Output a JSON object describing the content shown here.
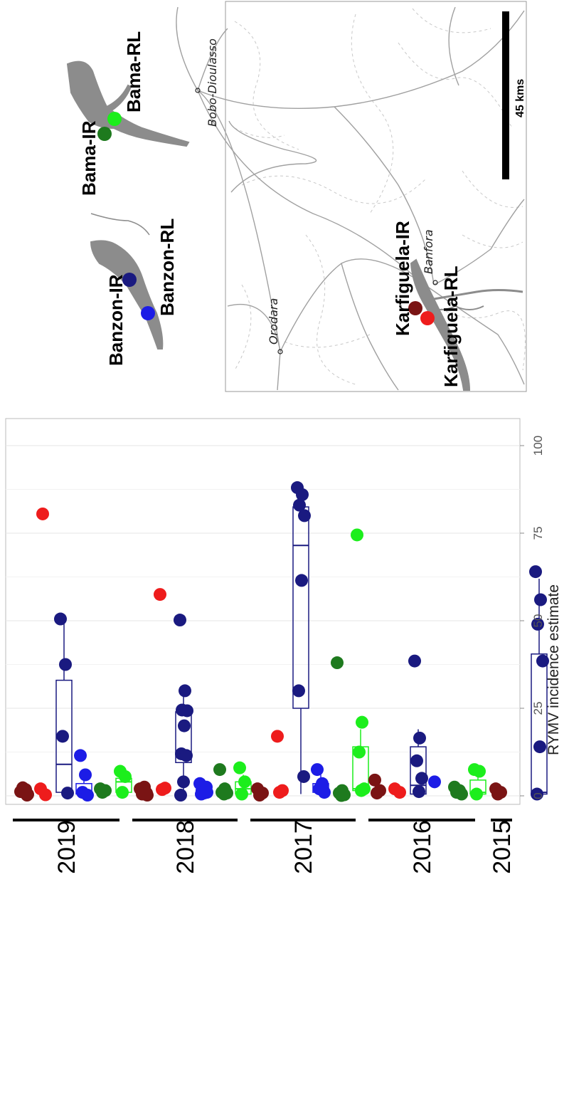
{
  "colors": {
    "Karfiguela-IR": "#7a1414",
    "Karfiguela-RL": "#ee1c1c",
    "Banzon-IR": "#1a1a80",
    "Banzon-RL": "#1c1ce6",
    "Bama-IR": "#1e7a1e",
    "Bama-RL": "#1cee1c"
  },
  "chart_data": {
    "type": "scatter",
    "xlabel": "RYMV incidence estimate",
    "xlim": [
      0,
      105
    ],
    "xticks": [
      0,
      25,
      50,
      75,
      100
    ],
    "groups": [
      "2019",
      "2018",
      "2017",
      "2016",
      "2015"
    ],
    "sites": [
      "Karfiguela-IR",
      "Karfiguela-RL",
      "Banzon-IR",
      "Banzon-RL",
      "Bama-IR",
      "Bama-RL"
    ],
    "series": [
      {
        "year": "2019",
        "site": "Karfiguela-IR",
        "values": [
          1.2,
          1.8,
          2.3,
          0.4,
          0.9,
          1.5,
          0.2
        ]
      },
      {
        "year": "2019",
        "site": "Karfiguela-RL",
        "values": [
          2.0,
          0.3,
          80.5
        ]
      },
      {
        "year": "2019",
        "site": "Banzon-IR",
        "values": [
          50.5,
          37.5,
          17.0,
          0.8
        ]
      },
      {
        "year": "2019",
        "site": "Banzon-RL",
        "values": [
          11.5,
          6.0,
          1.0,
          0.2
        ]
      },
      {
        "year": "2019",
        "site": "Bama-IR",
        "values": [
          2.0,
          1.5,
          1.0
        ]
      },
      {
        "year": "2019",
        "site": "Bama-RL",
        "values": [
          7.0,
          5.5,
          1.0
        ]
      },
      {
        "year": "2018",
        "site": "Karfiguela-IR",
        "values": [
          2.0,
          1.0,
          0.5,
          0.2,
          2.5,
          1.5,
          0.8
        ]
      },
      {
        "year": "2018",
        "site": "Karfiguela-RL",
        "values": [
          57.5,
          2.2,
          1.8
        ]
      },
      {
        "year": "2018",
        "site": "Banzon-IR",
        "values": [
          50.2,
          30.0,
          24.5,
          24.3,
          20.0,
          12.0,
          11.5,
          4.0,
          0.2
        ]
      },
      {
        "year": "2018",
        "site": "Banzon-RL",
        "values": [
          3.5,
          2.0,
          1.5,
          1.0,
          0.8,
          0.5,
          2.5,
          1.2
        ]
      },
      {
        "year": "2018",
        "site": "Bama-IR",
        "values": [
          7.5,
          2.0,
          1.0,
          0.8,
          0.5
        ]
      },
      {
        "year": "2018",
        "site": "Bama-RL",
        "values": [
          8.0,
          4.0,
          0.5
        ]
      },
      {
        "year": "2017",
        "site": "Karfiguela-IR",
        "values": [
          2.0,
          0.8,
          0.2
        ]
      },
      {
        "year": "2017",
        "site": "Karfiguela-RL",
        "values": [
          17.0,
          1.5,
          1.0
        ]
      },
      {
        "year": "2017",
        "site": "Banzon-IR",
        "values": [
          88.0,
          86.0,
          83.0,
          80.0,
          61.5,
          30.0,
          5.5
        ]
      },
      {
        "year": "2017",
        "site": "Banzon-RL",
        "values": [
          7.5,
          3.5,
          2.0,
          1.0
        ]
      },
      {
        "year": "2017",
        "site": "Bama-IR",
        "values": [
          38.0,
          1.5,
          0.8,
          0.3,
          0.1
        ]
      },
      {
        "year": "2017",
        "site": "Bama-RL",
        "values": [
          74.5,
          21.0,
          12.5,
          2.0,
          1.5
        ]
      },
      {
        "year": "2016",
        "site": "Karfiguela-IR",
        "values": [
          4.5,
          1.5,
          0.8
        ]
      },
      {
        "year": "2016",
        "site": "Karfiguela-RL",
        "values": [
          2.0,
          1.0
        ]
      },
      {
        "year": "2016",
        "site": "Banzon-IR",
        "values": [
          38.5,
          16.5,
          10.0,
          5.0,
          1.2
        ]
      },
      {
        "year": "2016",
        "site": "Banzon-RL",
        "values": [
          4.0
        ]
      },
      {
        "year": "2016",
        "site": "Bama-IR",
        "values": [
          2.5,
          1.5,
          1.0,
          0.5
        ]
      },
      {
        "year": "2016",
        "site": "Bama-RL",
        "values": [
          7.5,
          7.0,
          0.5
        ]
      },
      {
        "year": "2015",
        "site": "Karfiguela-IR",
        "values": [
          2.0,
          1.0,
          0.5
        ]
      },
      {
        "year": "2015",
        "site": "Banzon-IR",
        "values": [
          64.0,
          56.0,
          49.0,
          38.5,
          14.0,
          0.5
        ]
      }
    ],
    "boxes": [
      {
        "year": "2019",
        "site": "Banzon-IR",
        "min": 0.8,
        "q1": 1.0,
        "median": 9.0,
        "q3": 33.0,
        "max": 50.5
      },
      {
        "year": "2019",
        "site": "Banzon-RL",
        "min": 0.2,
        "q1": 0.5,
        "median": 1.0,
        "q3": 3.5,
        "max": 6.0
      },
      {
        "year": "2019",
        "site": "Bama-RL",
        "min": 1.0,
        "q1": 1.0,
        "median": 4.0,
        "q3": 5.0,
        "max": 7.0
      },
      {
        "year": "2018",
        "site": "Banzon-IR",
        "min": 0.2,
        "q1": 9.5,
        "median": 12.5,
        "q3": 24.0,
        "max": 30.0
      },
      {
        "year": "2018",
        "site": "Bama-RL",
        "min": 0.5,
        "q1": 0.5,
        "median": 2.0,
        "q3": 4.0,
        "max": 6.0
      },
      {
        "year": "2017",
        "site": "Banzon-IR",
        "min": 0.5,
        "q1": 25.0,
        "median": 71.5,
        "q3": 82.5,
        "max": 88.0
      },
      {
        "year": "2017",
        "site": "Banzon-RL",
        "min": 1.0,
        "q1": 1.0,
        "median": 2.5,
        "q3": 3.5,
        "max": 6.0
      },
      {
        "year": "2017",
        "site": "Bama-RL",
        "min": 1.5,
        "q1": 1.5,
        "median": 2.0,
        "q3": 14.0,
        "max": 19.0
      },
      {
        "year": "2016",
        "site": "Banzon-IR",
        "min": 0.5,
        "q1": 0.5,
        "median": 3.0,
        "q3": 14.0,
        "max": 19.0
      },
      {
        "year": "2016",
        "site": "Bama-RL",
        "min": 0.5,
        "q1": 0.5,
        "median": 1.0,
        "q3": 4.5,
        "max": 6.5
      },
      {
        "year": "2015",
        "site": "Banzon-IR",
        "min": 0.5,
        "q1": 0.5,
        "median": 1.0,
        "q3": 40.5,
        "max": 62.0
      }
    ]
  },
  "map": {
    "site_labels": {
      "banzon_ir": "Banzon-IR",
      "banzon_rl": "Banzon-RL",
      "bama_ir": "Bama-IR",
      "bama_rl": "Bama-RL",
      "karfiguela_ir": "Karfiguela-IR",
      "karfiguela_rl": "Karfiguela-RL"
    },
    "towns": {
      "orodara": "Orodara",
      "bobo": "Bobo-Dioulasso",
      "banfora": "Banfora"
    },
    "scale_label": "45 kms"
  }
}
